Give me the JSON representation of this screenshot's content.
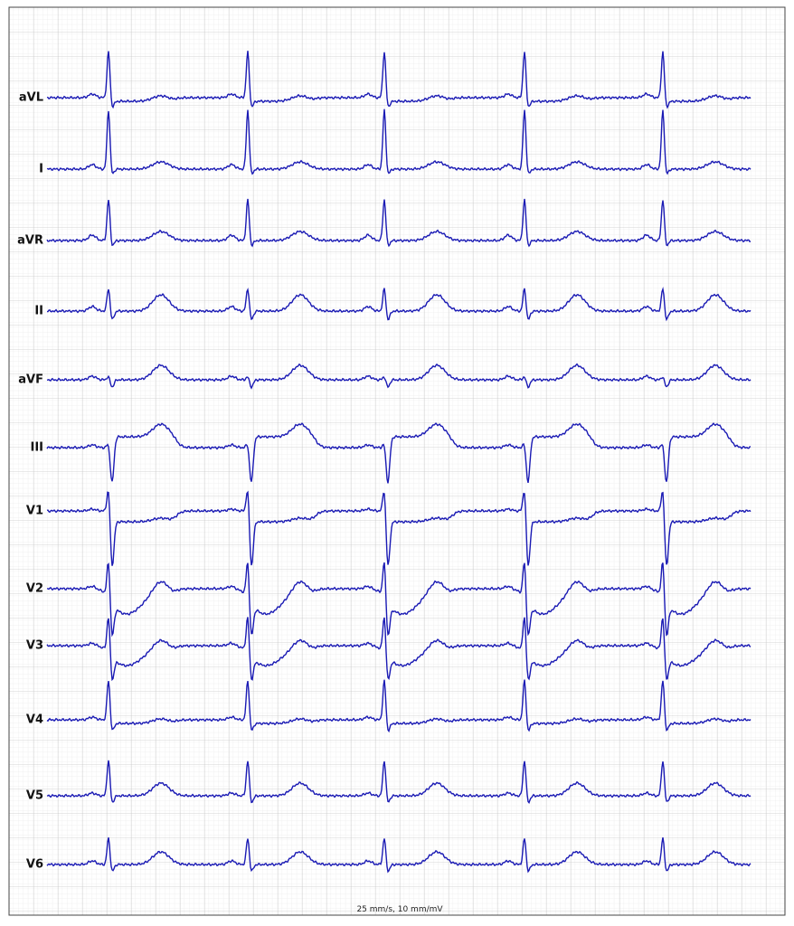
{
  "leads": [
    "aVL",
    "I",
    "aVR",
    "II",
    "aVF",
    "III",
    "V1",
    "V2",
    "V3",
    "V4",
    "V5",
    "V6"
  ],
  "footer": "25 mm/s, 10 mm/mV"
}
